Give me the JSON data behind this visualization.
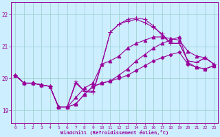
{
  "xlabel": "Windchill (Refroidissement éolien,°C)",
  "bg_color": "#cceeff",
  "grid_color": "#99cccc",
  "line_color": "#990099",
  "x_ticks": [
    0,
    1,
    2,
    3,
    4,
    5,
    6,
    7,
    8,
    9,
    10,
    11,
    12,
    13,
    14,
    15,
    16,
    17,
    18,
    19,
    20,
    21,
    22,
    23
  ],
  "y_ticks": [
    19,
    20,
    21,
    22
  ],
  "ylim": [
    18.6,
    22.4
  ],
  "xlim": [
    -0.5,
    23.5
  ],
  "series": [
    [
      20.1,
      19.85,
      19.85,
      19.8,
      19.75,
      19.1,
      19.1,
      19.2,
      19.5,
      19.75,
      19.85,
      19.92,
      20.0,
      20.1,
      20.25,
      20.4,
      20.55,
      20.65,
      20.75,
      20.82,
      20.45,
      20.35,
      20.3,
      20.4
    ],
    [
      20.1,
      19.85,
      19.85,
      19.8,
      19.75,
      19.1,
      19.1,
      19.2,
      19.5,
      19.75,
      19.85,
      19.92,
      20.1,
      20.3,
      20.55,
      20.75,
      20.95,
      21.1,
      21.2,
      21.3,
      20.5,
      20.35,
      20.3,
      20.4
    ],
    [
      20.1,
      19.85,
      19.85,
      19.8,
      19.75,
      19.1,
      19.1,
      19.4,
      19.7,
      19.85,
      20.45,
      20.55,
      20.7,
      20.95,
      21.1,
      21.2,
      21.3,
      21.3,
      21.25,
      21.2,
      20.85,
      20.7,
      20.65,
      20.45
    ],
    [
      20.1,
      19.85,
      19.85,
      19.8,
      19.75,
      19.1,
      19.1,
      19.85,
      19.6,
      19.55,
      20.45,
      21.45,
      21.7,
      21.8,
      21.85,
      21.75,
      21.6,
      21.4,
      21.1,
      21.1,
      20.55,
      20.5,
      20.65,
      20.45
    ],
    [
      20.1,
      19.85,
      19.85,
      19.8,
      19.75,
      19.1,
      19.1,
      19.9,
      19.6,
      19.6,
      20.45,
      21.45,
      21.7,
      21.85,
      21.9,
      21.85,
      21.65,
      21.35,
      21.1,
      21.1,
      20.55,
      20.5,
      20.65,
      20.45
    ]
  ],
  "markers": [
    "D",
    "^",
    "^",
    "+",
    "+"
  ],
  "marker_sizes": [
    2.5,
    3.5,
    3.5,
    4,
    4
  ],
  "linewidths": [
    0.8,
    0.8,
    0.8,
    0.8,
    0.8
  ]
}
